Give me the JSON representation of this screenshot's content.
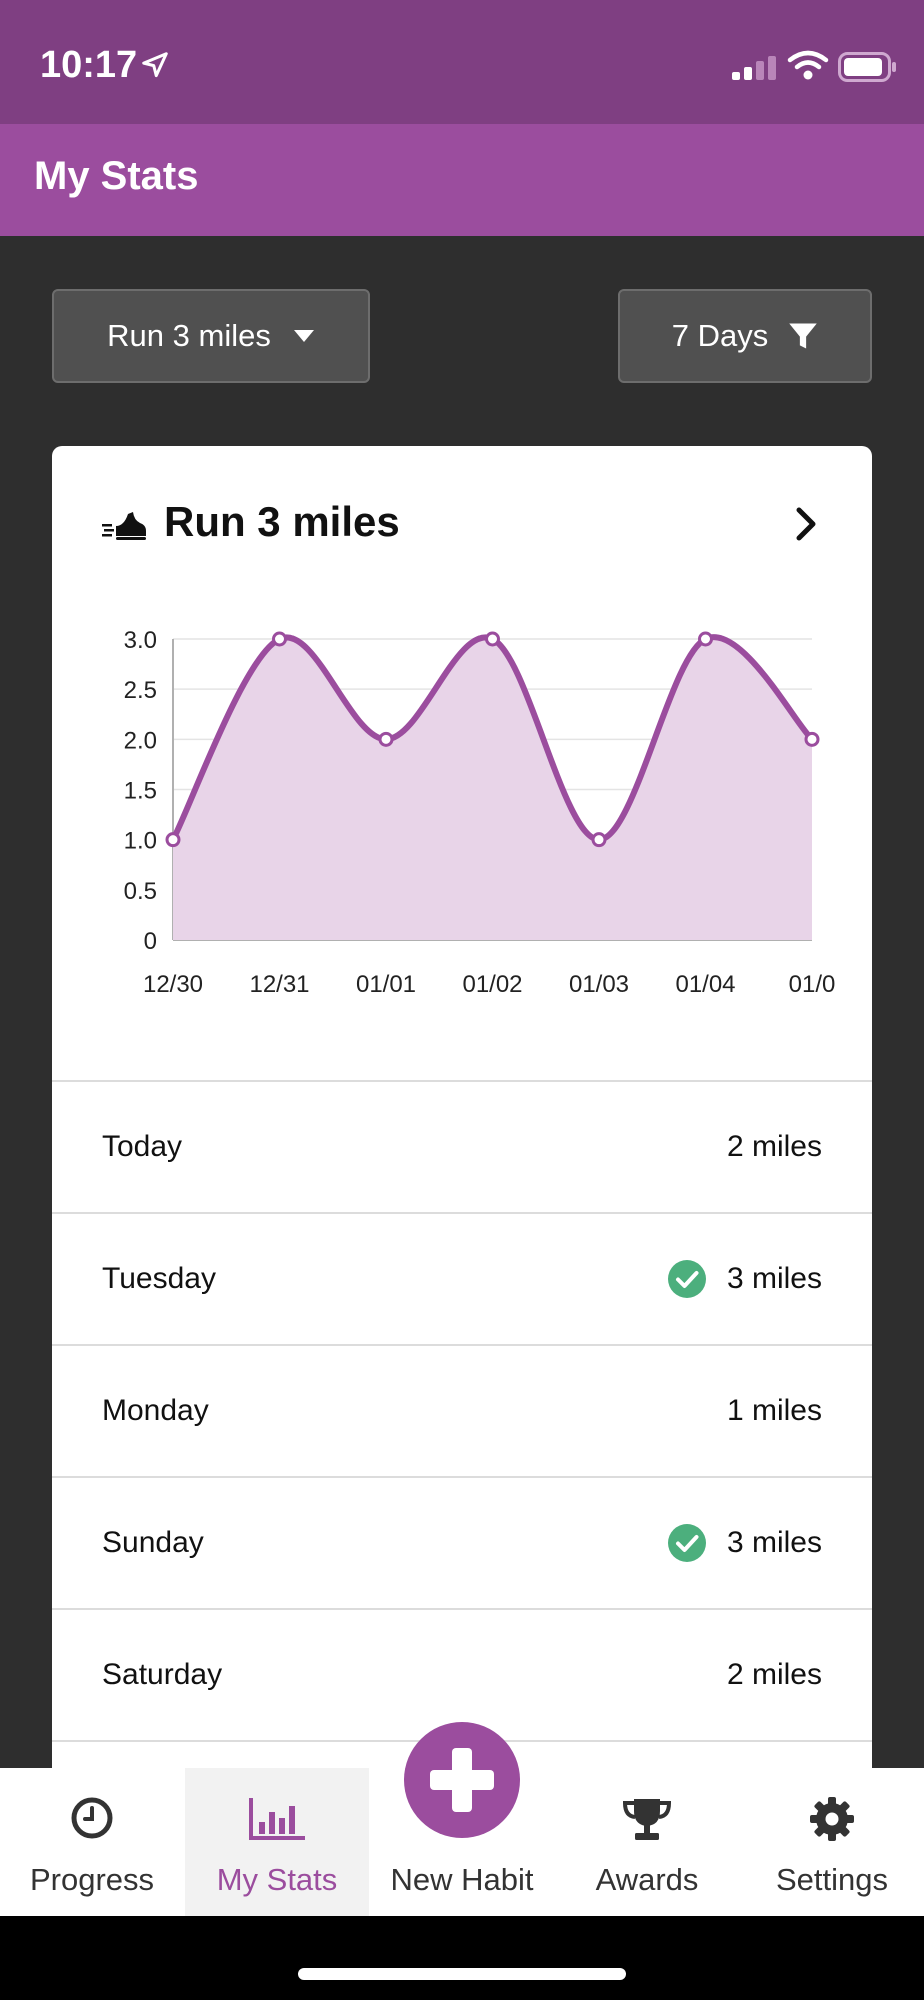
{
  "status_bar": {
    "time": "10:17"
  },
  "header": {
    "title": "My Stats"
  },
  "controls": {
    "habit_select": "Run 3 miles",
    "range_filter": "7 Days"
  },
  "card": {
    "title": "Run 3 miles",
    "rows": [
      {
        "day": "Today",
        "value": "2 miles",
        "completed": false
      },
      {
        "day": "Tuesday",
        "value": "3 miles",
        "completed": true
      },
      {
        "day": "Monday",
        "value": "1 miles",
        "completed": false
      },
      {
        "day": "Sunday",
        "value": "3 miles",
        "completed": true
      },
      {
        "day": "Saturday",
        "value": "2 miles",
        "completed": false
      }
    ]
  },
  "chart_data": {
    "type": "area",
    "categories": [
      "12/30",
      "12/31",
      "01/01",
      "01/02",
      "01/03",
      "01/04",
      "01/0"
    ],
    "values": [
      1,
      3,
      2,
      3,
      1,
      3,
      2
    ],
    "ylim": [
      0,
      3
    ],
    "yticks": [
      "0",
      "0.5",
      "1.0",
      "1.5",
      "2.0",
      "2.5",
      "3.0"
    ],
    "grid": true,
    "color": "#9b4d9e",
    "fill": "#e8d4e8"
  },
  "tabbar": {
    "tabs": [
      {
        "label": "Progress",
        "icon": "clock-icon"
      },
      {
        "label": "My Stats",
        "icon": "bar-chart-icon"
      },
      {
        "label": "New Habit",
        "icon": "plus-icon"
      },
      {
        "label": "Awards",
        "icon": "trophy-icon"
      },
      {
        "label": "Settings",
        "icon": "gear-icon"
      }
    ],
    "active": "My Stats"
  },
  "colors": {
    "accent": "#9b4d9e",
    "status_bar": "#7f3f82",
    "check": "#4caf7d",
    "background": "#2e2e2e"
  }
}
